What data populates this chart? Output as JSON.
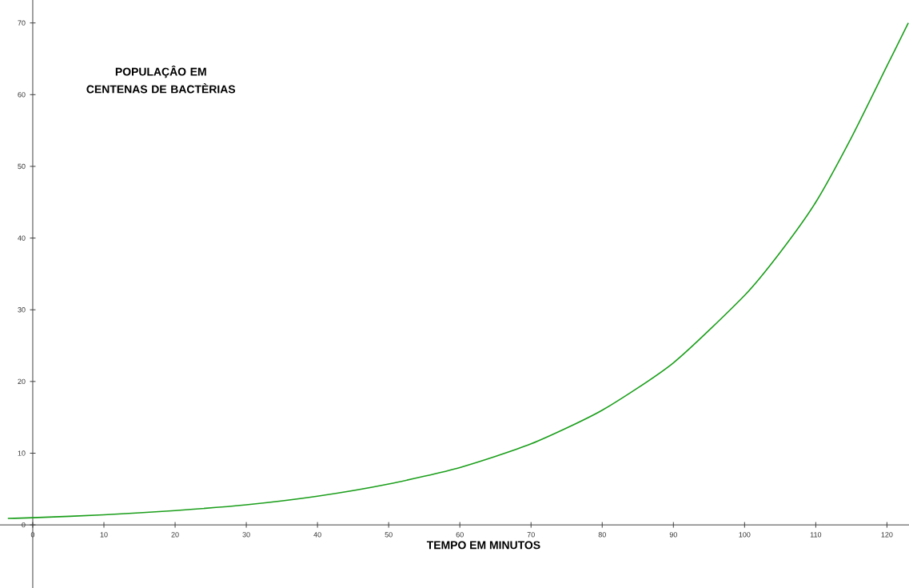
{
  "chart_data": {
    "type": "line",
    "ylabel": "POPULAÇÂO EM CENTENAS DE BACTÈRIAS",
    "xlabel": "TEMPO EM MINUTOS",
    "x": [
      -3.5,
      0,
      10,
      20,
      30,
      40,
      50,
      60,
      70,
      80,
      90,
      100,
      105,
      110,
      115,
      120,
      123
    ],
    "series": [
      {
        "color": "#1a9e1a",
        "values": [
          0.9,
          1,
          1.4,
          2,
          2.8,
          4,
          5.7,
          8,
          11.3,
          16,
          22.6,
          32,
          38,
          45,
          54,
          64,
          70
        ]
      }
    ],
    "xlim": [
      -4.6,
      123.1
    ],
    "ylim": [
      -8.8,
      73.2
    ],
    "xticks": [
      0,
      10,
      20,
      30,
      40,
      50,
      60,
      70,
      80,
      90,
      100,
      110,
      120
    ],
    "yticks": [
      0,
      10,
      20,
      30,
      40,
      50,
      60,
      70
    ],
    "grid": false,
    "marker": "none",
    "line_style": "solid"
  }
}
